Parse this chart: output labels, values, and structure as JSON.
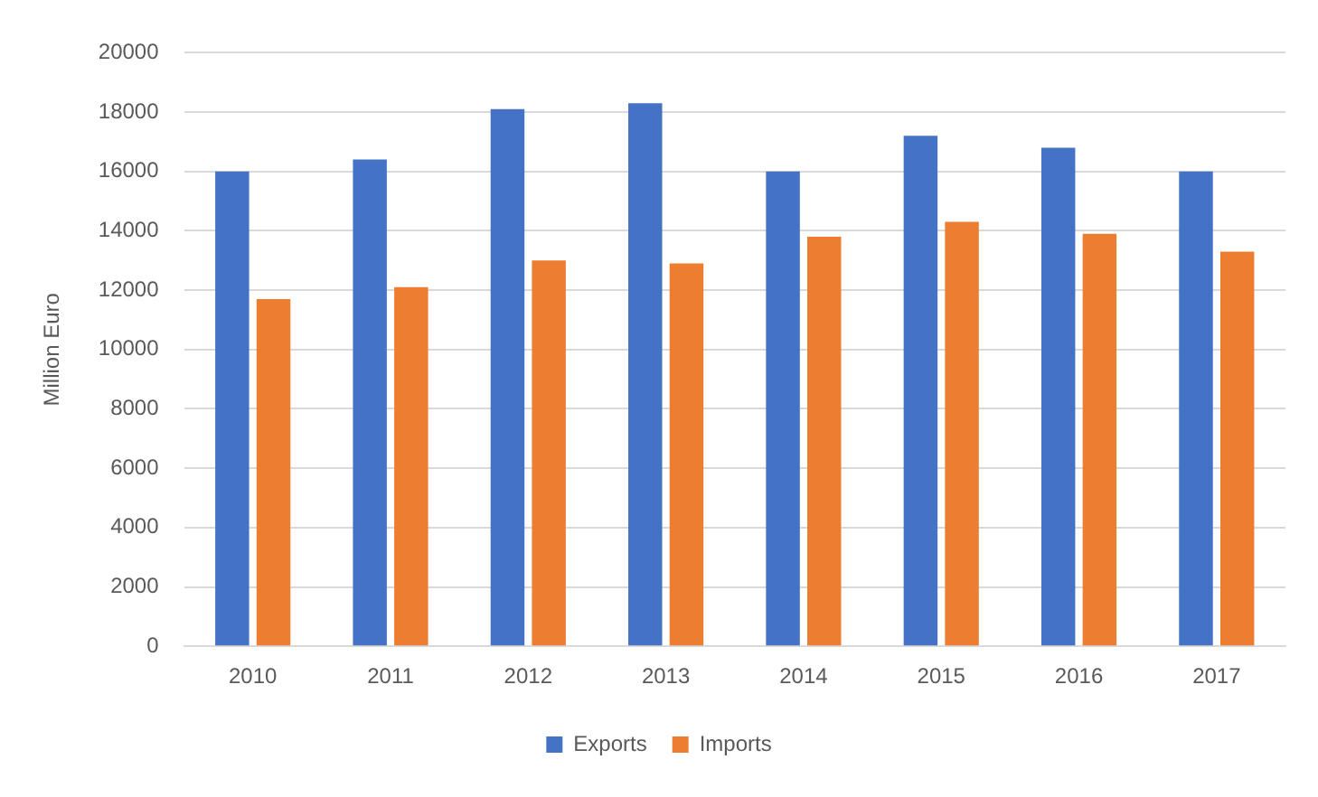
{
  "chart_data": {
    "type": "bar",
    "ylabel": "Million Euro",
    "categories": [
      "2010",
      "2011",
      "2012",
      "2013",
      "2014",
      "2015",
      "2016",
      "2017"
    ],
    "series": [
      {
        "name": "Exports",
        "color": "#4472c4",
        "values": [
          16000,
          16400,
          18100,
          18300,
          16000,
          17200,
          16800,
          16000
        ]
      },
      {
        "name": "Imports",
        "color": "#ed7d31",
        "values": [
          11700,
          12100,
          13000,
          12900,
          13800,
          14300,
          13900,
          13300
        ]
      }
    ],
    "ylim": [
      0,
      20000
    ],
    "yticks": [
      0,
      2000,
      4000,
      6000,
      8000,
      10000,
      12000,
      14000,
      16000,
      18000,
      20000
    ],
    "grid": "y",
    "legend": "bottom"
  }
}
